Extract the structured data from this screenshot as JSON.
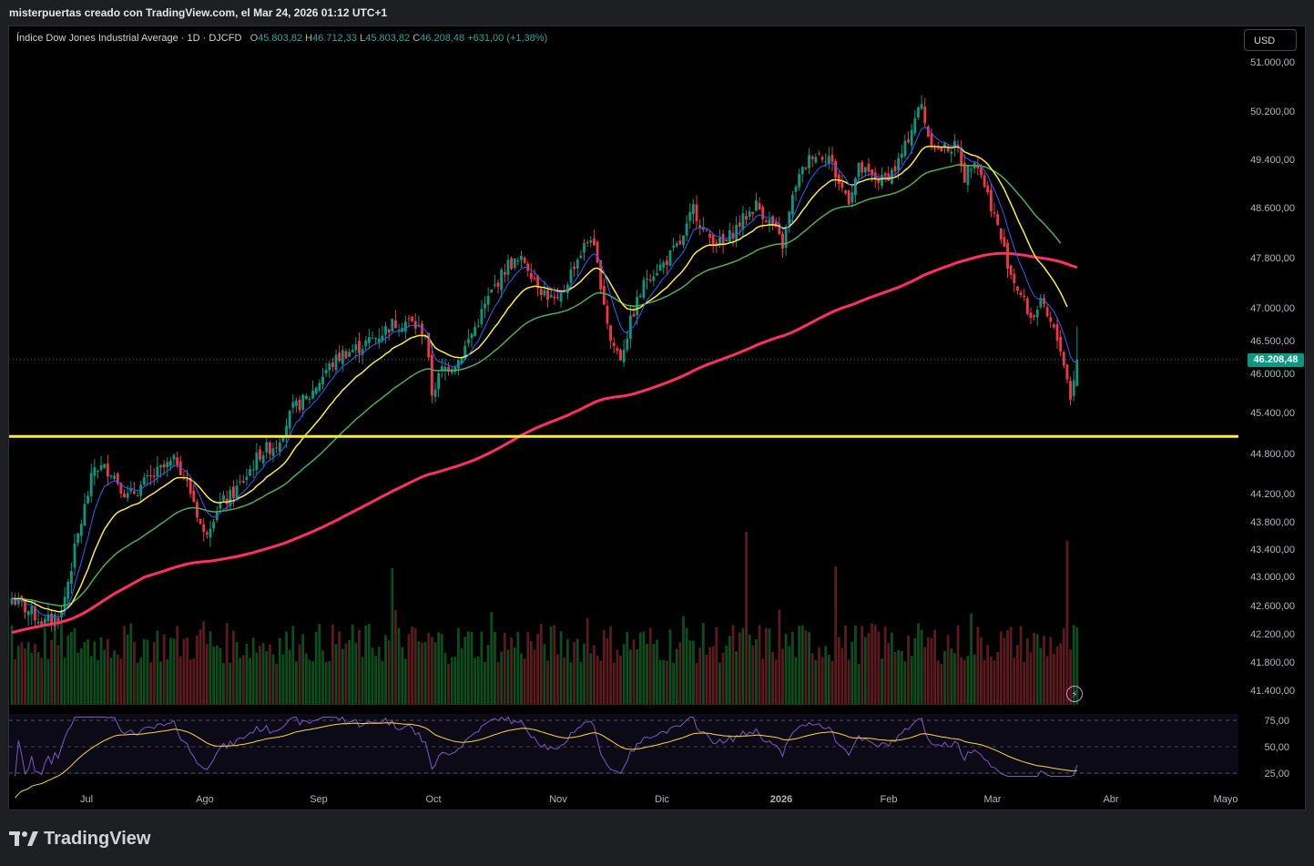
{
  "header": {
    "caption": "misterpuertas creado con TradingView.com, el Mar 24, 2026 01:12 UTC+1"
  },
  "legend": {
    "symbol": "Índice Dow Jones Industrial Average · 1D · DJCFD",
    "o_label": "O",
    "o_value": "45.803,82",
    "h_label": "H",
    "h_value": "46.712,33",
    "l_label": "L",
    "l_value": "45.803,82",
    "c_label": "C",
    "c_value": "46.208,48",
    "change": "+631,00 (+1,38%)"
  },
  "currency_button": "USD",
  "last_price_tag": "46.208,48",
  "footer": {
    "brand": "TradingView"
  },
  "colors": {
    "up": "#089981",
    "down": "#f23645",
    "ma_blue": "#2962ff",
    "ma_yellow": "#ffeb3b",
    "ma_green": "#4caf50",
    "ma_pink": "#ff2e63",
    "support_line": "#ffeb3b",
    "rsi": "#7e57c2",
    "rsi_ma": "#fdd835"
  },
  "chart_data": {
    "type": "candlestick",
    "price_ticks": [
      "51.000,00",
      "50.200,00",
      "49.400,00",
      "48.600,00",
      "47.800,00",
      "47.000,00",
      "46.500,00",
      "46.000,00",
      "45.400,00",
      "44.800,00",
      "44.200,00",
      "43.800,00",
      "43.400,00",
      "43.000,00",
      "42.600,00",
      "42.200,00",
      "41.800,00",
      "41.400,00"
    ],
    "time_ticks": [
      "Jul",
      "Ago",
      "Sep",
      "Oct",
      "Nov",
      "Dic",
      "2026",
      "Feb",
      "Mar",
      "Abr",
      "Mayo"
    ],
    "rsi_ticks": [
      "75,00",
      "50,00",
      "25,00"
    ],
    "support_level": 45050,
    "last_close": 46208.48,
    "anchors": [
      [
        0,
        42700
      ],
      [
        10,
        42350
      ],
      [
        15,
        42500
      ],
      [
        20,
        43600
      ],
      [
        25,
        44600
      ],
      [
        30,
        44550
      ],
      [
        35,
        44150
      ],
      [
        40,
        44350
      ],
      [
        45,
        44550
      ],
      [
        50,
        44700
      ],
      [
        55,
        44100
      ],
      [
        58,
        43600
      ],
      [
        62,
        44000
      ],
      [
        66,
        44150
      ],
      [
        70,
        44400
      ],
      [
        75,
        44800
      ],
      [
        80,
        44950
      ],
      [
        85,
        45450
      ],
      [
        90,
        45650
      ],
      [
        95,
        46050
      ],
      [
        100,
        46300
      ],
      [
        105,
        46400
      ],
      [
        110,
        46550
      ],
      [
        115,
        46750
      ],
      [
        120,
        46800
      ],
      [
        125,
        46600
      ],
      [
        127,
        45700
      ],
      [
        130,
        46050
      ],
      [
        135,
        46200
      ],
      [
        140,
        46700
      ],
      [
        145,
        47250
      ],
      [
        150,
        47700
      ],
      [
        155,
        47750
      ],
      [
        160,
        47300
      ],
      [
        165,
        47050
      ],
      [
        170,
        47700
      ],
      [
        175,
        48150
      ],
      [
        178,
        47400
      ],
      [
        181,
        46500
      ],
      [
        184,
        46250
      ],
      [
        188,
        46950
      ],
      [
        192,
        47500
      ],
      [
        197,
        47700
      ],
      [
        203,
        48100
      ],
      [
        206,
        48600
      ],
      [
        210,
        48150
      ],
      [
        215,
        48000
      ],
      [
        220,
        48350
      ],
      [
        225,
        48650
      ],
      [
        230,
        48300
      ],
      [
        233,
        48000
      ],
      [
        237,
        49000
      ],
      [
        242,
        49500
      ],
      [
        247,
        49450
      ],
      [
        250,
        49000
      ],
      [
        253,
        48750
      ],
      [
        256,
        49250
      ],
      [
        260,
        49100
      ],
      [
        263,
        49050
      ],
      [
        267,
        49250
      ],
      [
        270,
        49600
      ],
      [
        273,
        50100
      ],
      [
        275,
        50300
      ],
      [
        277,
        49800
      ],
      [
        280,
        49550
      ],
      [
        283,
        49600
      ],
      [
        286,
        49600
      ],
      [
        288,
        49100
      ],
      [
        291,
        49450
      ],
      [
        293,
        49150
      ],
      [
        296,
        48650
      ],
      [
        299,
        48100
      ],
      [
        302,
        47550
      ],
      [
        305,
        47200
      ],
      [
        308,
        46850
      ],
      [
        311,
        47050
      ],
      [
        314,
        46750
      ],
      [
        317,
        46400
      ],
      [
        320,
        45650
      ],
      [
        322,
        46210
      ]
    ],
    "volume_range": [
      41200,
      43600
    ],
    "rsi_range": [
      20,
      80
    ]
  }
}
